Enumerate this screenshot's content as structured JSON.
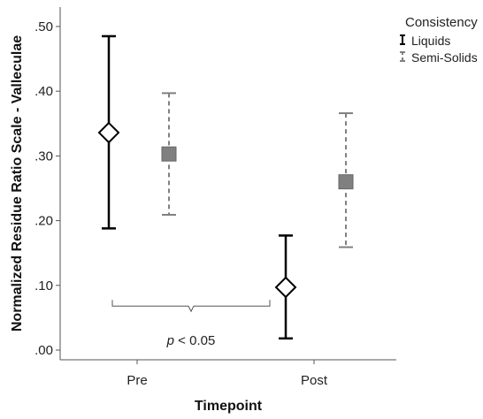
{
  "chart_data": {
    "type": "scatter",
    "subtype": "point-with-error-bars",
    "categories": [
      "Pre",
      "Post"
    ],
    "xlabel": "Timepoint",
    "ylabel": "Normalized Residue Ratio Scale - Valleculae",
    "ylim": [
      -0.015,
      0.53
    ],
    "yticks": [
      0.0,
      0.1,
      0.2,
      0.3,
      0.4,
      0.5
    ],
    "ytick_labels": [
      ".00",
      ".10",
      ".20",
      ".30",
      ".40",
      ".50"
    ],
    "grid": false,
    "legend": {
      "title": "Consistency",
      "placement": "right-top"
    },
    "series": [
      {
        "name": "Liquids",
        "marker": "diamond",
        "color": "#000000",
        "marker_fill": "#ffffff",
        "line_style": "solid",
        "points": [
          {
            "category": "Pre",
            "mean": 0.336,
            "lower": 0.188,
            "upper": 0.485
          },
          {
            "category": "Post",
            "mean": 0.097,
            "lower": 0.018,
            "upper": 0.177
          }
        ]
      },
      {
        "name": "Semi-Solids",
        "marker": "square",
        "color": "#808080",
        "marker_fill": "#808080",
        "line_style": "dashed",
        "points": [
          {
            "category": "Pre",
            "mean": 0.303,
            "lower": 0.209,
            "upper": 0.397
          },
          {
            "category": "Post",
            "mean": 0.26,
            "lower": 0.159,
            "upper": 0.366
          }
        ]
      }
    ],
    "annotations": [
      {
        "type": "brace",
        "from_category": "Pre",
        "to_category": "Post",
        "y": 0.068,
        "text_prefix": "p",
        "text_suffix": " < 0.05",
        "text_y": 0.008
      }
    ]
  }
}
